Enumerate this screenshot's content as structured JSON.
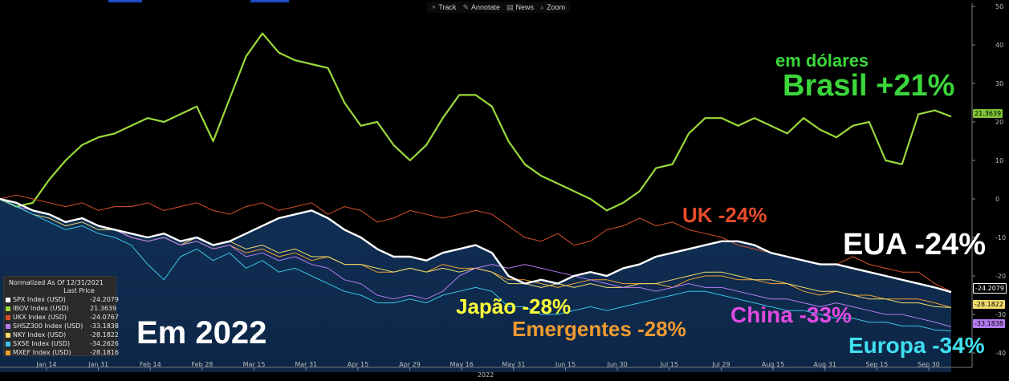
{
  "toolbar": {
    "items": [
      {
        "icon": "crosshair-icon",
        "label": "Track"
      },
      {
        "icon": "pencil-icon",
        "label": "Annotate"
      },
      {
        "icon": "news-icon",
        "label": "News"
      },
      {
        "icon": "magnifier-icon",
        "label": "Zoom"
      }
    ]
  },
  "legend": {
    "header": "Normalized As Of 12/31/2021",
    "subheader": "Last Price",
    "rows": [
      {
        "name": "SPX Index (USD)",
        "value": "-24.2079",
        "color": "#ffffff"
      },
      {
        "name": "IBOV Index (USD)",
        "value": "21.3639",
        "color": "#9bd93a"
      },
      {
        "name": "UKX Index (USD)",
        "value": "-24.0767",
        "color": "#d9502b"
      },
      {
        "name": "SHSZ300 Index (USD)",
        "value": "-33.1838",
        "color": "#b57cf0"
      },
      {
        "name": "NKY Index (USD)",
        "value": "-28.1822",
        "color": "#f2dc6c"
      },
      {
        "name": "SX5E Index (USD)",
        "value": "-34.2626",
        "color": "#39c6e6"
      },
      {
        "name": "MXEF Index (USD)",
        "value": "-28.1816",
        "color": "#f0a030"
      }
    ]
  },
  "tags": {
    "ibov": "21.3639",
    "spx": "-24.2079",
    "nky": "-28.1822",
    "shsz": "-33.1838"
  },
  "annotations": {
    "em_dolares": "em dólares",
    "brasil": "Brasil +21%",
    "uk": "UK -24%",
    "eua": "EUA -24%",
    "japao": "Japão -28%",
    "emergentes": "Emergentes -28%",
    "china": "China -33%",
    "europa": "Europa -34%",
    "em2022": "Em 2022"
  },
  "chart_data": {
    "type": "line",
    "x_labels": [
      "Jan 14",
      "Jan 31",
      "Feb 14",
      "Feb 28",
      "Mar 15",
      "Mar 31",
      "Apr 15",
      "Apr 29",
      "May 16",
      "May 31",
      "Jun 15",
      "Jun 30",
      "Jul 15",
      "Jul 29",
      "Aug 15",
      "Aug 31",
      "Sep 15",
      "Sep 30"
    ],
    "x_year": "2022",
    "ylim": [
      -45,
      50
    ],
    "y_ticks": [
      50,
      40,
      30,
      20,
      10,
      0,
      -10,
      -20,
      -30,
      -40
    ],
    "grid": false,
    "series": [
      {
        "name": "IBOV Index (USD)",
        "color": "#9bd93a",
        "width": 2.2,
        "values": [
          0,
          -2,
          -1,
          5,
          10,
          14,
          16,
          17,
          19,
          21,
          20,
          22,
          24,
          15,
          26,
          37,
          43,
          38,
          36,
          35,
          34,
          25,
          19,
          20,
          14,
          10,
          14,
          21,
          27,
          27,
          24,
          15,
          9,
          6,
          4,
          2,
          0,
          -3,
          -1,
          2,
          8,
          9,
          17,
          21,
          21,
          19,
          21,
          19,
          17,
          21,
          18,
          16,
          19,
          20,
          10,
          9,
          22,
          23,
          21.4
        ]
      },
      {
        "name": "UKX Index (USD)",
        "color": "#d9502b",
        "width": 1,
        "values": [
          0,
          1,
          0,
          -1,
          -2,
          -1,
          -3,
          -2,
          -2,
          -1,
          -3,
          -2,
          -1,
          -3,
          -4,
          -2,
          -1,
          -3,
          -2,
          -1,
          -4,
          -2,
          -3,
          -6,
          -5,
          -3,
          -4,
          -5,
          -4,
          -3,
          -4,
          -7,
          -10,
          -11,
          -9,
          -12,
          -11,
          -8,
          -7,
          -5,
          -7,
          -6,
          -8,
          -9,
          -10,
          -12,
          -13,
          -14,
          -15,
          -16,
          -17,
          -17,
          -15,
          -17,
          -18,
          -19,
          -19,
          -22,
          -24.1
        ]
      },
      {
        "name": "MXEF Index (USD)",
        "color": "#f0a030",
        "width": 1,
        "values": [
          0,
          -1,
          -3,
          -4,
          -6,
          -5,
          -7,
          -8,
          -10,
          -11,
          -10,
          -12,
          -11,
          -13,
          -12,
          -14,
          -13,
          -15,
          -14,
          -16,
          -15,
          -17,
          -17,
          -19,
          -19,
          -18,
          -19,
          -17,
          -18,
          -18,
          -19,
          -21,
          -21,
          -22,
          -23,
          -22,
          -21,
          -21,
          -22,
          -22,
          -22,
          -23,
          -21,
          -20,
          -20,
          -21,
          -21,
          -22,
          -22,
          -24,
          -25,
          -24,
          -25,
          -25,
          -26,
          -26,
          -26,
          -27,
          -28.2
        ]
      },
      {
        "name": "NKY Index (USD)",
        "color": "#f2dc6c",
        "width": 1,
        "values": [
          0,
          -2,
          -4,
          -5,
          -7,
          -6,
          -8,
          -8,
          -10,
          -11,
          -10,
          -12,
          -10,
          -12,
          -11,
          -13,
          -12,
          -14,
          -13,
          -15,
          -15,
          -17,
          -17,
          -18,
          -19,
          -18,
          -19,
          -18,
          -19,
          -18,
          -19,
          -22,
          -22,
          -23,
          -22,
          -23,
          -22,
          -23,
          -23,
          -22,
          -22,
          -21,
          -20,
          -19,
          -19,
          -20,
          -21,
          -21,
          -22,
          -23,
          -24,
          -24,
          -25,
          -26,
          -26,
          -27,
          -27,
          -28,
          -28.2
        ]
      },
      {
        "name": "SHSZ300 Index (USD)",
        "color": "#b57cf0",
        "width": 1,
        "values": [
          0,
          -2,
          -3,
          -4,
          -6,
          -5,
          -7,
          -8,
          -10,
          -11,
          -10,
          -12,
          -11,
          -13,
          -12,
          -15,
          -14,
          -16,
          -15,
          -17,
          -18,
          -21,
          -22,
          -25,
          -26,
          -25,
          -26,
          -24,
          -20,
          -18,
          -17,
          -18,
          -17,
          -18,
          -19,
          -20,
          -21,
          -22,
          -23,
          -23,
          -24,
          -23,
          -22,
          -23,
          -23,
          -24,
          -25,
          -26,
          -26,
          -27,
          -28,
          -27,
          -28,
          -29,
          -30,
          -30,
          -31,
          -32,
          -33.2
        ]
      },
      {
        "name": "SX5E Index (USD)",
        "color": "#39c6e6",
        "width": 1,
        "values": [
          0,
          -2,
          -4,
          -6,
          -8,
          -7,
          -9,
          -10,
          -12,
          -17,
          -21,
          -15,
          -13,
          -16,
          -14,
          -18,
          -16,
          -19,
          -18,
          -20,
          -22,
          -24,
          -25,
          -27,
          -27,
          -26,
          -27,
          -25,
          -24,
          -23,
          -24,
          -28,
          -28,
          -30,
          -30,
          -29,
          -28,
          -29,
          -28,
          -27,
          -26,
          -25,
          -24,
          -24,
          -25,
          -26,
          -27,
          -28,
          -29,
          -29,
          -30,
          -31,
          -31,
          -32,
          -32,
          -33,
          -33,
          -34,
          -34.3
        ]
      },
      {
        "name": "SPX Index (USD)",
        "color": "#ffffff",
        "width": 2.4,
        "values": [
          0,
          -1,
          -3,
          -4,
          -6,
          -5,
          -7,
          -8,
          -9,
          -10,
          -9,
          -11,
          -10,
          -12,
          -11,
          -9,
          -7,
          -5,
          -4,
          -3,
          -5,
          -8,
          -10,
          -13,
          -15,
          -15,
          -16,
          -14,
          -13,
          -12,
          -14,
          -20,
          -22,
          -21,
          -22,
          -20,
          -19,
          -20,
          -18,
          -17,
          -15,
          -14,
          -13,
          -12,
          -11,
          -11,
          -12,
          -14,
          -15,
          -16,
          -17,
          -17,
          -18,
          -19,
          -20,
          -21,
          -22,
          -23,
          -24.2
        ]
      }
    ]
  }
}
